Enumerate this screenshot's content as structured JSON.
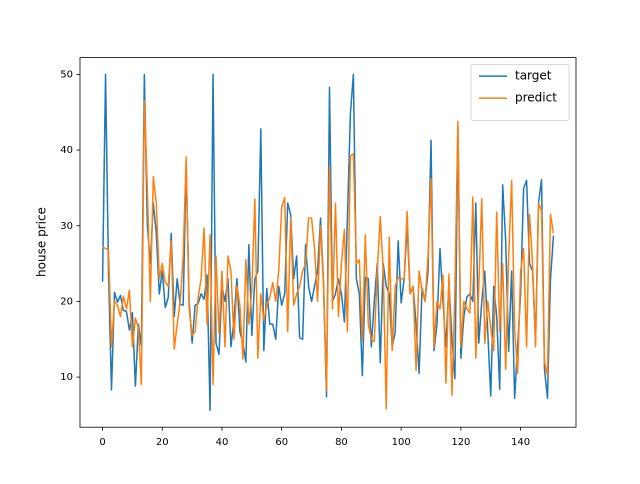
{
  "chart_data": {
    "type": "line",
    "ylabel": "house price",
    "x": [
      0,
      1,
      2,
      3,
      4,
      5,
      6,
      7,
      8,
      9,
      10,
      11,
      12,
      13,
      14,
      15,
      16,
      17,
      18,
      19,
      20,
      21,
      22,
      23,
      24,
      25,
      26,
      27,
      28,
      29,
      30,
      31,
      32,
      33,
      34,
      35,
      36,
      37,
      38,
      39,
      40,
      41,
      42,
      43,
      44,
      45,
      46,
      47,
      48,
      49,
      50,
      51,
      52,
      53,
      54,
      55,
      56,
      57,
      58,
      59,
      60,
      61,
      62,
      63,
      64,
      65,
      66,
      67,
      68,
      69,
      70,
      71,
      72,
      73,
      74,
      75,
      76,
      77,
      78,
      79,
      80,
      81,
      82,
      83,
      84,
      85,
      86,
      87,
      88,
      89,
      90,
      91,
      92,
      93,
      94,
      95,
      96,
      97,
      98,
      99,
      100,
      101,
      102,
      103,
      104,
      105,
      106,
      107,
      108,
      109,
      110,
      111,
      112,
      113,
      114,
      115,
      116,
      117,
      118,
      119,
      120,
      121,
      122,
      123,
      124,
      125,
      126,
      127,
      128,
      129,
      130,
      131,
      132,
      133,
      134,
      135,
      136,
      137,
      138,
      139,
      140,
      141,
      142,
      143,
      144,
      145,
      146,
      147,
      148,
      149,
      150,
      151
    ],
    "series": [
      {
        "name": "target",
        "color": "#1f77b4",
        "values": [
          22.6,
          50,
          23.8,
          8.3,
          21.2,
          19.9,
          20.8,
          18.8,
          18.7,
          16.2,
          18.5,
          8.8,
          17.0,
          14.1,
          50,
          30.0,
          25.0,
          33.0,
          29.0,
          21.0,
          24.0,
          19.2,
          20.5,
          29.0,
          18.0,
          23.0,
          19.6,
          19.5,
          38.0,
          20.0,
          14.5,
          19.5,
          19.7,
          21.0,
          20.3,
          23.5,
          5.6,
          50,
          14.5,
          13.0,
          22.0,
          20.0,
          23.0,
          14.0,
          17.5,
          23.0,
          16.0,
          14.5,
          12.0,
          27.5,
          15.5,
          23.0,
          24.0,
          42.8,
          13.5,
          21.7,
          17.0,
          17.0,
          15.0,
          22.0,
          19.5,
          21.0,
          33.0,
          31.5,
          23.0,
          26.0,
          15.2,
          15.0,
          27.5,
          22.0,
          20.0,
          22.0,
          24.0,
          31.0,
          22.6,
          7.4,
          48.3,
          20.0,
          21.0,
          23.0,
          21.0,
          17.3,
          31.0,
          44.8,
          50,
          23.0,
          21.0,
          10.2,
          23.2,
          23.0,
          14.0,
          20.0,
          25.0,
          11.9,
          25.0,
          22.0,
          21.0,
          14.0,
          16.0,
          28.0,
          19.8,
          23.0,
          30.0,
          21.0,
          22.0,
          17.0,
          10.5,
          21.8,
          20.0,
          24.0,
          41.3,
          13.5,
          17.0,
          27.0,
          20.0,
          14.0,
          22.5,
          15.0,
          9.8,
          43.0,
          12.5,
          18.0,
          20.6,
          21.0,
          20.0,
          33.0,
          14.5,
          20.0,
          24.0,
          16.0,
          7.5,
          22.0,
          18.0,
          8.4,
          35.4,
          28.0,
          13.4,
          24.0,
          7.2,
          14.0,
          21.0,
          34.9,
          36.0,
          25.0,
          24.0,
          15.0,
          33.0,
          36.1,
          11.0,
          7.2,
          22.9,
          28.7
        ]
      },
      {
        "name": "predict",
        "color": "#ff7f0e",
        "values": [
          27.2,
          27.0,
          26.8,
          14.0,
          20.0,
          19.5,
          18.0,
          20.7,
          19.0,
          21.5,
          14.0,
          17.8,
          16.5,
          9.0,
          46.5,
          35.0,
          20.0,
          36.5,
          33.0,
          23.0,
          25.0,
          22.5,
          22.0,
          28.0,
          13.7,
          17.0,
          20.0,
          26.0,
          39.1,
          19.0,
          15.5,
          16.0,
          20.5,
          23.0,
          29.7,
          17.0,
          28.8,
          9.0,
          26.0,
          15.8,
          24.0,
          14.0,
          26.0,
          24.0,
          15.0,
          22.0,
          19.5,
          12.4,
          25.5,
          17.0,
          21.5,
          33.5,
          12.5,
          21.0,
          17.5,
          19.5,
          20.5,
          22.5,
          20.0,
          24.0,
          32.5,
          33.7,
          16.0,
          31.0,
          19.5,
          21.0,
          22.0,
          24.0,
          25.0,
          31.0,
          31.0,
          27.0,
          20.0,
          30.0,
          22.0,
          8.2,
          37.8,
          19.0,
          33.0,
          18.0,
          25.0,
          29.5,
          16.0,
          39.2,
          39.5,
          25.0,
          25.5,
          14.8,
          28.8,
          17.0,
          15.0,
          14.7,
          24.0,
          31.2,
          24.0,
          5.8,
          28.5,
          13.5,
          22.0,
          23.2,
          23.0,
          23.0,
          31.9,
          21.0,
          22.0,
          10.9,
          24.0,
          21.5,
          20.0,
          26.0,
          36.2,
          14.0,
          20.0,
          19.0,
          23.5,
          9.2,
          23.6,
          7.6,
          21.5,
          43.8,
          14.0,
          20.0,
          19.0,
          18.5,
          33.8,
          12.5,
          22.0,
          33.6,
          14.5,
          20.0,
          16.5,
          13.5,
          31.8,
          16.0,
          25.0,
          11.0,
          26.0,
          36.0,
          16.5,
          10.5,
          24.0,
          27.0,
          14.0,
          31.5,
          25.0,
          14.0,
          33.0,
          32.0,
          12.0,
          10.2,
          31.5,
          29.0
        ]
      }
    ],
    "xlim": [
      -7.55,
      158.55
    ],
    "ylim": [
      3.38,
      52.22
    ],
    "xticks": [
      0,
      20,
      40,
      60,
      80,
      100,
      120,
      140
    ],
    "yticks": [
      10,
      20,
      30,
      40,
      50
    ],
    "legend": "upper right"
  }
}
